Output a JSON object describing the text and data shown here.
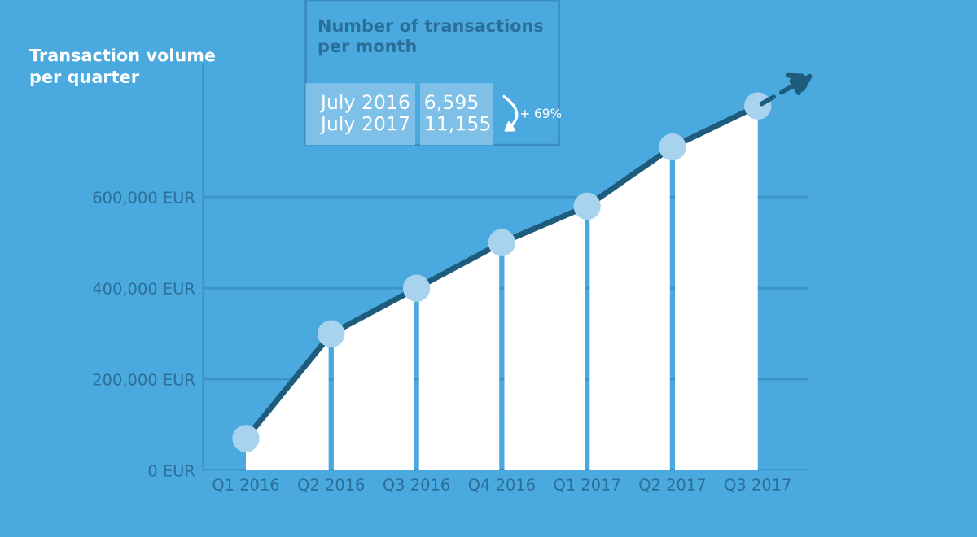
{
  "chart_data": {
    "type": "area",
    "title": "Transaction volume\nper quarter",
    "categories": [
      "Q1 2016",
      "Q2 2016",
      "Q3 2016",
      "Q4 2016",
      "Q1 2017",
      "Q2 2017",
      "Q3 2017"
    ],
    "series": [
      {
        "color": "#ffffff",
        "values": [
          70000,
          300000,
          400000,
          500000,
          580000,
          710000,
          800000
        ]
      }
    ],
    "ylim": [
      0,
      890000
    ],
    "yticks": [
      {
        "value": 0,
        "label": "0 EUR"
      },
      {
        "value": 200000,
        "label": "200,000 EUR"
      },
      {
        "value": 400000,
        "label": "400,000 EUR"
      },
      {
        "value": 600000,
        "label": "600,000 EUR"
      }
    ],
    "grid": "y",
    "marker": "circle",
    "line_style": "solid",
    "annotations": [
      "Number of transactions\nper month",
      "July 2016\nJuly 2017",
      "6,595\n11,155",
      "+ 69%"
    ]
  }
}
